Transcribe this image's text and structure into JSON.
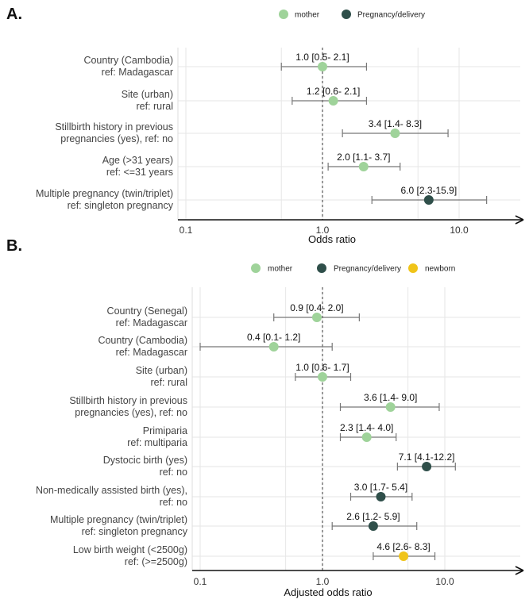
{
  "chart_data": [
    {
      "panel": "A.",
      "type": "forest",
      "scale": "log",
      "xlabel": "Odds ratio",
      "xticks": [
        0.1,
        1.0,
        10.0
      ],
      "xtick_labels": [
        "0.1",
        "1.0",
        "10.0"
      ],
      "reference_value": 1.0,
      "legend": [
        {
          "name": "mother",
          "color": "#9fd39a"
        },
        {
          "name": "Pregnancy/delivery",
          "color": "#2f4f4a"
        }
      ],
      "rows": [
        {
          "label1": "Country (Cambodia)",
          "label2": "ref: Madagascar",
          "or": 1.0,
          "lo": 0.5,
          "hi": 2.1,
          "category": "mother",
          "text": "1.0 [0.5- 2.1]"
        },
        {
          "label1": "Site (urban)",
          "label2": "ref: rural",
          "or": 1.2,
          "lo": 0.6,
          "hi": 2.1,
          "category": "mother",
          "text": "1.2 [0.6- 2.1]"
        },
        {
          "label1": "Stillbirth history in previous",
          "label2": "pregnancies (yes), ref: no",
          "or": 3.4,
          "lo": 1.4,
          "hi": 8.3,
          "category": "mother",
          "text": "3.4 [1.4- 8.3]"
        },
        {
          "label1": "Age (>31 years)",
          "label2": "ref: <=31 years",
          "or": 2.0,
          "lo": 1.1,
          "hi": 3.7,
          "category": "mother",
          "text": "2.0 [1.1- 3.7]"
        },
        {
          "label1": "Multiple pregnancy (twin/triplet)",
          "label2": "ref: singleton pregnancy",
          "or": 6.0,
          "lo": 2.3,
          "hi": 15.9,
          "category": "Pregnancy/delivery",
          "text": "6.0 [2.3-15.9]"
        }
      ]
    },
    {
      "panel": "B.",
      "type": "forest",
      "scale": "log",
      "xlabel": "Adjusted odds ratio",
      "xticks": [
        0.1,
        1.0,
        10.0
      ],
      "xtick_labels": [
        "0.1",
        "1.0",
        "10.0"
      ],
      "reference_value": 1.0,
      "legend": [
        {
          "name": "mother",
          "color": "#9fd39a"
        },
        {
          "name": "Pregnancy/delivery",
          "color": "#2f4f4a"
        },
        {
          "name": "newborn",
          "color": "#f0c419"
        }
      ],
      "rows": [
        {
          "label1": "Country (Senegal)",
          "label2": "ref: Madagascar",
          "or": 0.9,
          "lo": 0.4,
          "hi": 2.0,
          "category": "mother",
          "text": "0.9 [0.4- 2.0]"
        },
        {
          "label1": "Country (Cambodia)",
          "label2": "ref: Madagascar",
          "or": 0.4,
          "lo": 0.1,
          "hi": 1.2,
          "category": "mother",
          "text": "0.4 [0.1- 1.2]"
        },
        {
          "label1": "Site (urban)",
          "label2": "ref: rural",
          "or": 1.0,
          "lo": 0.6,
          "hi": 1.7,
          "category": "mother",
          "text": "1.0 [0.6- 1.7]"
        },
        {
          "label1": "Stillbirth history in previous",
          "label2": "pregnancies (yes), ref: no",
          "or": 3.6,
          "lo": 1.4,
          "hi": 9.0,
          "category": "mother",
          "text": "3.6 [1.4- 9.0]"
        },
        {
          "label1": "Primiparia",
          "label2": "ref: multiparia",
          "or": 2.3,
          "lo": 1.4,
          "hi": 4.0,
          "category": "mother",
          "text": "2.3 [1.4- 4.0]"
        },
        {
          "label1": "Dystocic birth (yes)",
          "label2": "ref: no",
          "or": 7.1,
          "lo": 4.1,
          "hi": 12.2,
          "category": "Pregnancy/delivery",
          "text": "7.1 [4.1-12.2]"
        },
        {
          "label1": "Non-medically assisted birth (yes),",
          "label2": "ref: no",
          "or": 3.0,
          "lo": 1.7,
          "hi": 5.4,
          "category": "Pregnancy/delivery",
          "text": "3.0 [1.7- 5.4]"
        },
        {
          "label1": "Multiple pregnancy (twin/triplet)",
          "label2": "ref: singleton pregnancy",
          "or": 2.6,
          "lo": 1.2,
          "hi": 5.9,
          "category": "Pregnancy/delivery",
          "text": "2.6 [1.2- 5.9]"
        },
        {
          "label1": "Low birth weight (<2500g)",
          "label2": "ref: (>=2500g)",
          "or": 4.6,
          "lo": 2.6,
          "hi": 8.3,
          "category": "newborn",
          "text": "4.6 [2.6- 8.3]"
        }
      ]
    }
  ]
}
